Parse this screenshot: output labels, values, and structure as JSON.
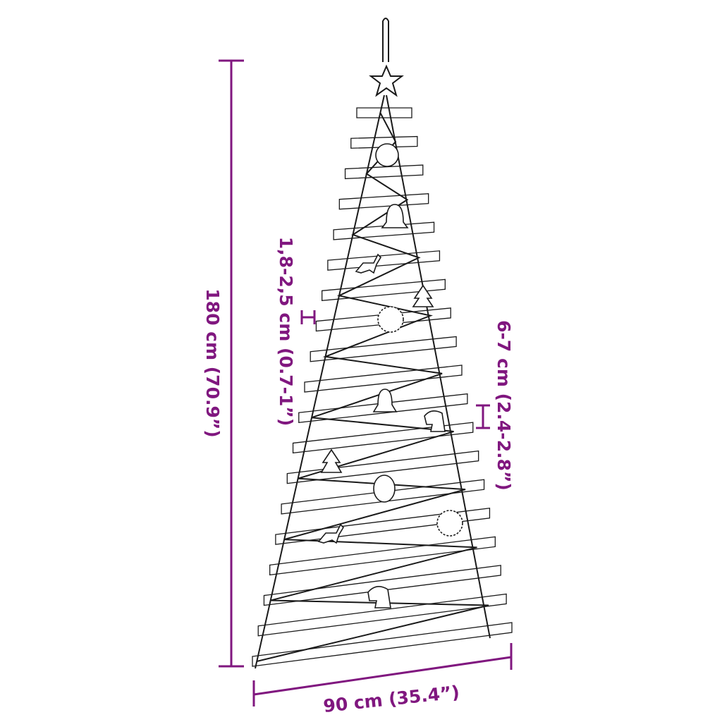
{
  "accent_color": "#80177f",
  "line_color": "#1a1a1a",
  "dimensions": {
    "height": "180 cm (70.9”)",
    "rod_diameter": "1,8-2,5 cm (0.7-1”)",
    "rod_spacing": "6-7 cm (2.4-2.8”)",
    "width": "90 cm (35.4”)"
  },
  "ornaments": [
    "star-icon",
    "bauble-icon",
    "bell-icon",
    "reindeer-icon",
    "tree-icon",
    "snowflake-icon",
    "bell-icon",
    "unicorn-icon",
    "tree-icon",
    "bauble-icon",
    "reindeer-icon",
    "snowflake-icon",
    "unicorn-icon"
  ]
}
